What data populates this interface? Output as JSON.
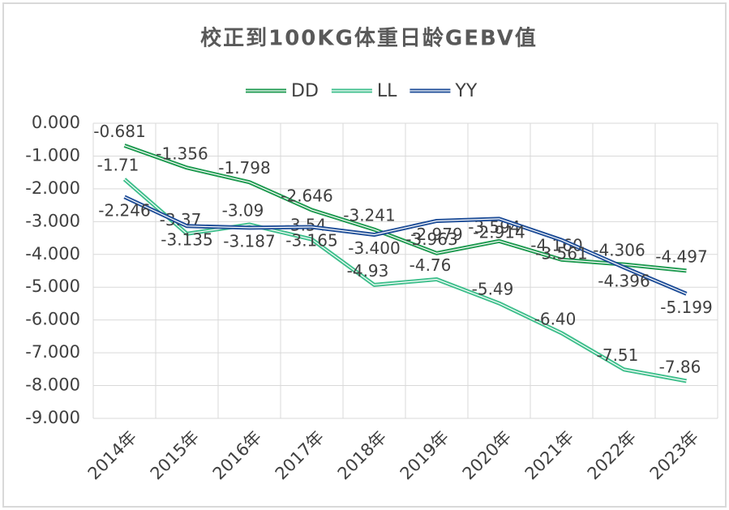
{
  "chart_data": {
    "type": "line",
    "title": "校正到100KG体重日龄GEBV值",
    "categories": [
      "2014年",
      "2015年",
      "2016年",
      "2017年",
      "2018年",
      "2019年",
      "2020年",
      "2021年",
      "2022年",
      "2023年"
    ],
    "series": [
      {
        "name": "DD",
        "color": "#1e9a50",
        "values": [
          -0.681,
          -1.356,
          -1.798,
          -2.646,
          -3.241,
          -3.963,
          -3.594,
          -4.16,
          -4.306,
          -4.497
        ],
        "value_labels": [
          "-0.681",
          "-1.356",
          "-1.798",
          "-2.646",
          "-3.241",
          "-3.963",
          "-3.594",
          "-4.160",
          "-4.306",
          "-4.497"
        ]
      },
      {
        "name": "LL",
        "color": "#3fbf8c",
        "values": [
          -1.71,
          -3.37,
          -3.09,
          -3.54,
          -4.93,
          -4.76,
          -5.49,
          -6.4,
          -7.51,
          -7.86
        ],
        "value_labels": [
          "-1.71",
          "-3.37",
          "-3.09",
          "-3.54",
          "-4.93",
          "-4.76",
          "-5.49",
          "-6.40",
          "-7.51",
          "-7.86"
        ]
      },
      {
        "name": "YY",
        "color": "#1f4e98",
        "values": [
          -2.246,
          -3.135,
          -3.187,
          -3.165,
          -3.4,
          -2.979,
          -2.914,
          -3.561,
          -4.396,
          -5.199
        ],
        "value_labels": [
          "-2.246",
          "-3.135",
          "-3.187",
          "-3.165",
          "-3.400",
          "-2.979",
          "-2.914",
          "-3.561",
          "-4.396",
          "-5.199"
        ]
      }
    ],
    "ylim": [
      -9,
      0
    ],
    "yticks": [
      {
        "value": 0,
        "label": "0.000"
      },
      {
        "value": -1,
        "label": "-1.000"
      },
      {
        "value": -2,
        "label": "-2.000"
      },
      {
        "value": -3,
        "label": "-3.000"
      },
      {
        "value": -4,
        "label": "-4.000"
      },
      {
        "value": -5,
        "label": "-5.000"
      },
      {
        "value": -6,
        "label": "-6.000"
      },
      {
        "value": -7,
        "label": "-7.000"
      },
      {
        "value": -8,
        "label": "-8.000"
      },
      {
        "value": -9,
        "label": "-9.000"
      }
    ],
    "grid": true
  }
}
